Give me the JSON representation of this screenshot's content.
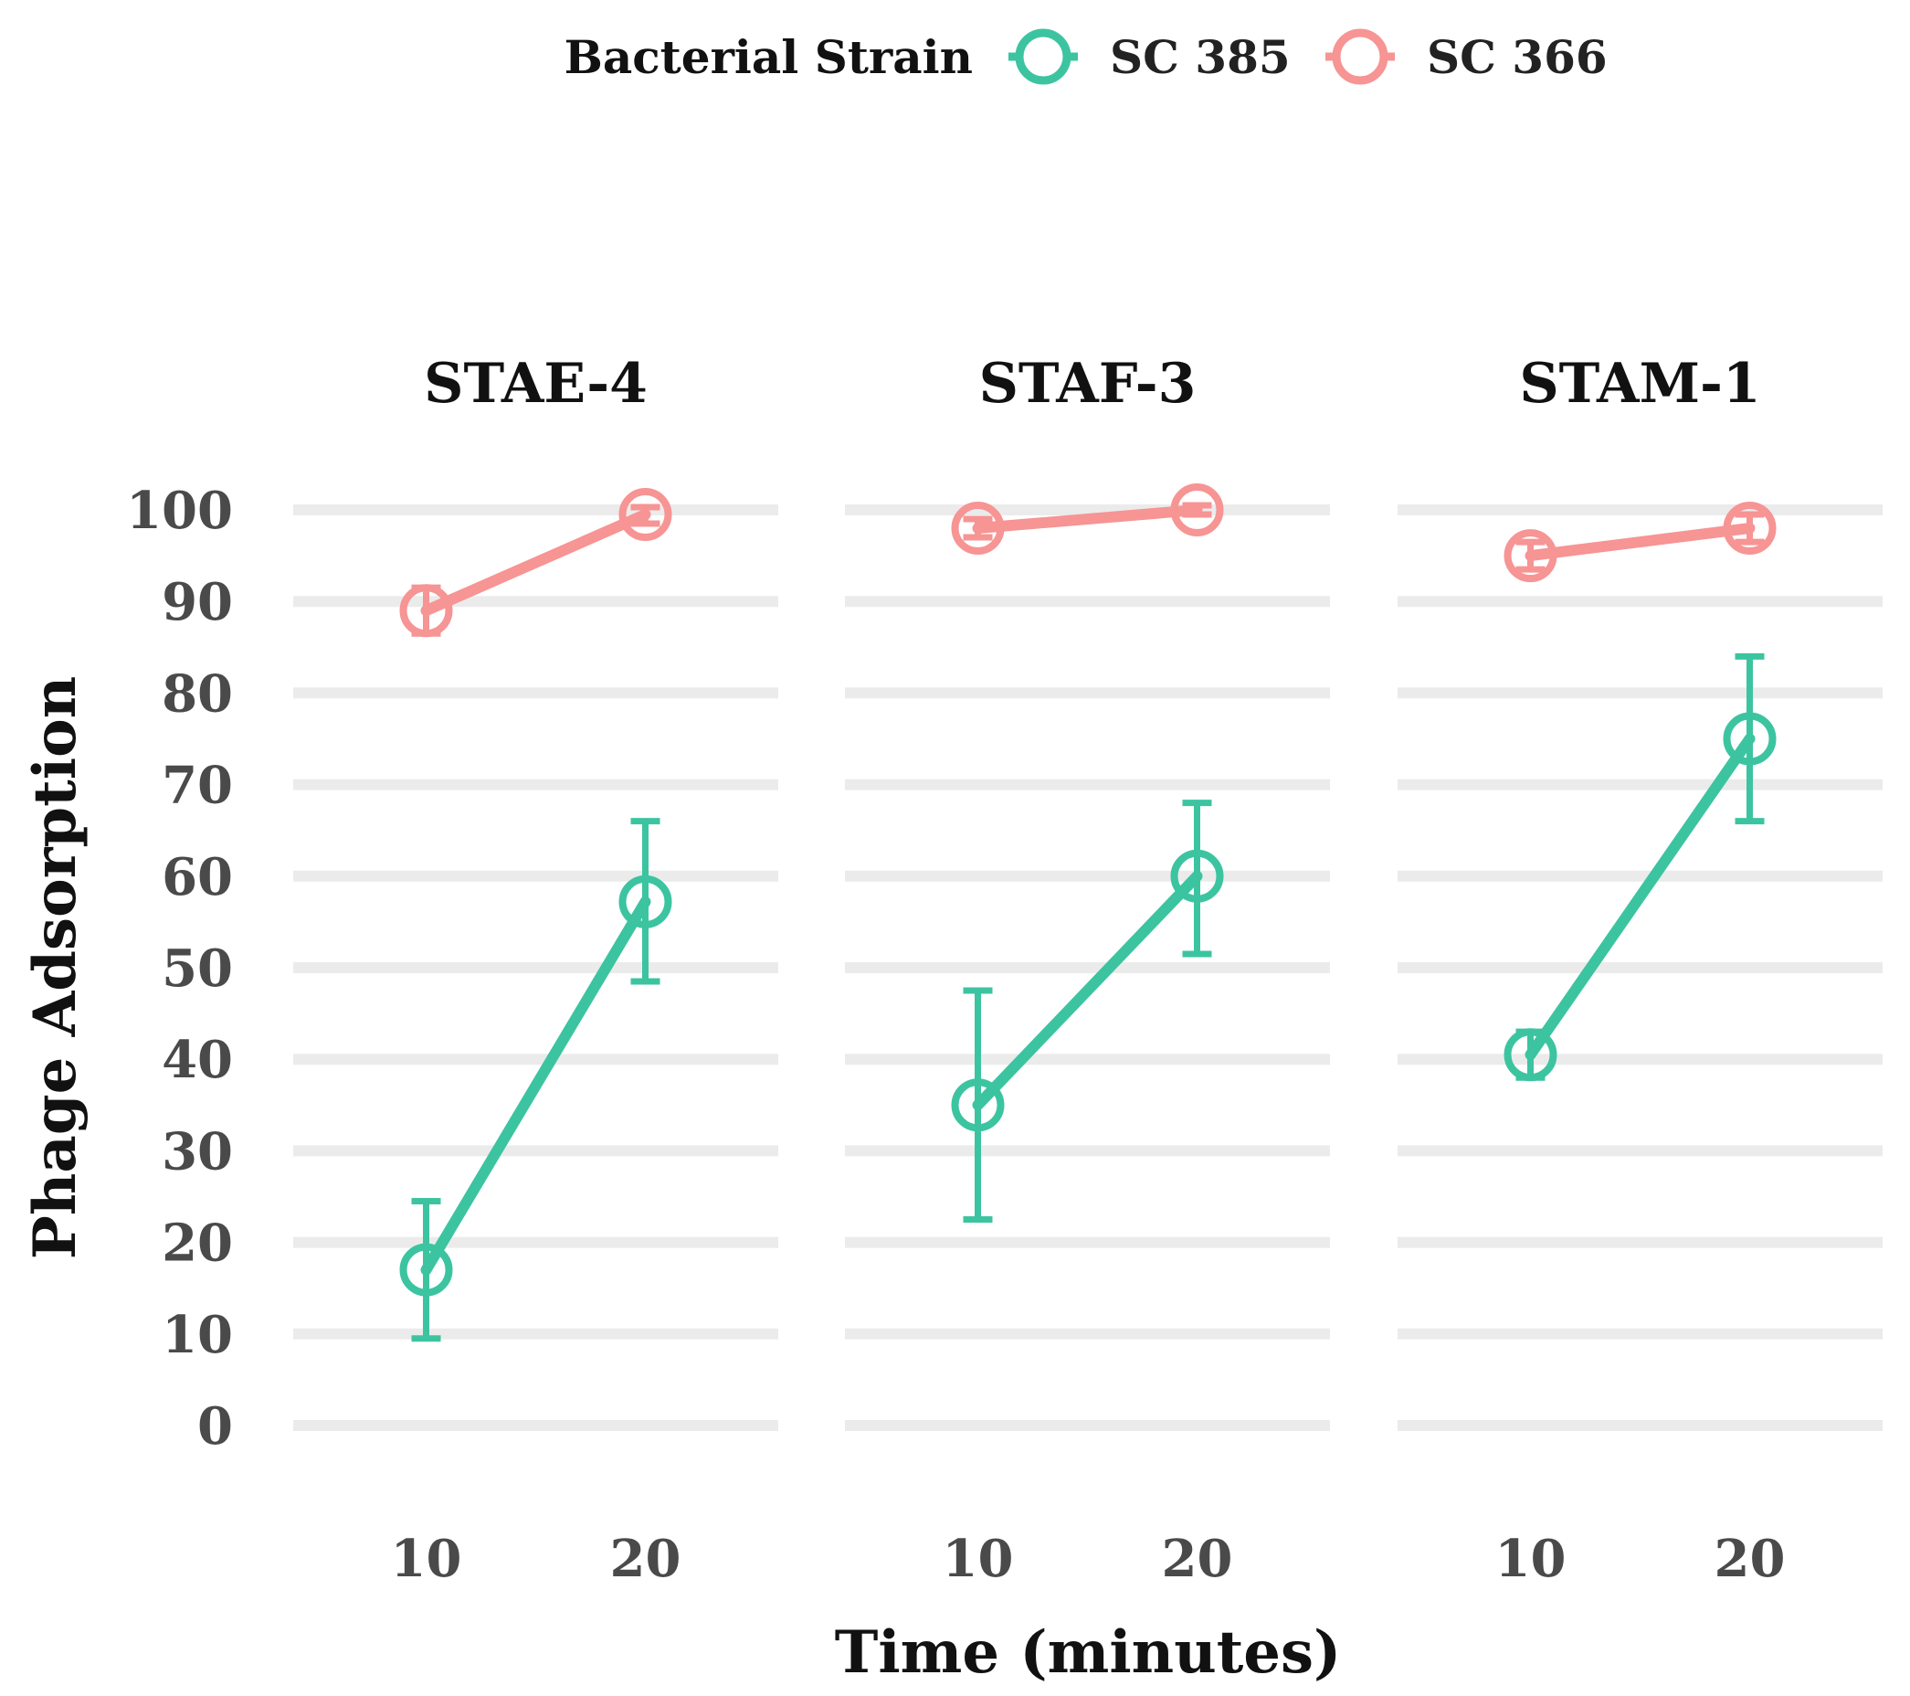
{
  "chart_data": {
    "type": "line",
    "title": "",
    "legend": {
      "title": "Bacterial Strain",
      "position": "top",
      "entries": [
        {
          "name": "SC 385",
          "color": "#3cc4a0"
        },
        {
          "name": "SC 366",
          "color": "#f79494"
        }
      ]
    },
    "xlabel": "Time (minutes)",
    "ylabel": "Phage Adsorption",
    "x": [
      10,
      20
    ],
    "x_tick_labels": [
      "10",
      "20"
    ],
    "ylim": [
      0,
      100
    ],
    "y_ticks": [
      0,
      10,
      20,
      30,
      40,
      50,
      60,
      70,
      80,
      90,
      100
    ],
    "y_tick_labels": [
      "0",
      "10",
      "20",
      "30",
      "40",
      "50",
      "60",
      "70",
      "80",
      "90",
      "100"
    ],
    "grid": "horizontal",
    "panels": [
      {
        "title": "STAE-4",
        "series": [
          {
            "name": "SC 385",
            "values": [
              17,
              57.2
            ],
            "error_low": [
              9.5,
              48.5
            ],
            "error_high": [
              24.5,
              66
            ]
          },
          {
            "name": "SC 366",
            "values": [
              89,
              99.5
            ],
            "error_low": [
              86.5,
              98.5
            ],
            "error_high": [
              91.5,
              100.3
            ]
          }
        ]
      },
      {
        "title": "STAF-3",
        "series": [
          {
            "name": "SC 385",
            "values": [
              35,
              60
            ],
            "error_low": [
              22.5,
              51.5
            ],
            "error_high": [
              47.5,
              68
            ]
          },
          {
            "name": "SC 366",
            "values": [
              98,
              100
            ],
            "error_low": [
              97,
              99.5
            ],
            "error_high": [
              99,
              100.5
            ]
          }
        ]
      },
      {
        "title": "STAM-1",
        "series": [
          {
            "name": "SC 385",
            "values": [
              40.5,
              75
            ],
            "error_low": [
              38,
              66
            ],
            "error_high": [
              43,
              84
            ]
          },
          {
            "name": "SC 366",
            "values": [
              95,
              98
            ],
            "error_low": [
              93.5,
              96.5
            ],
            "error_high": [
              96.5,
              99.5
            ]
          }
        ]
      }
    ]
  }
}
